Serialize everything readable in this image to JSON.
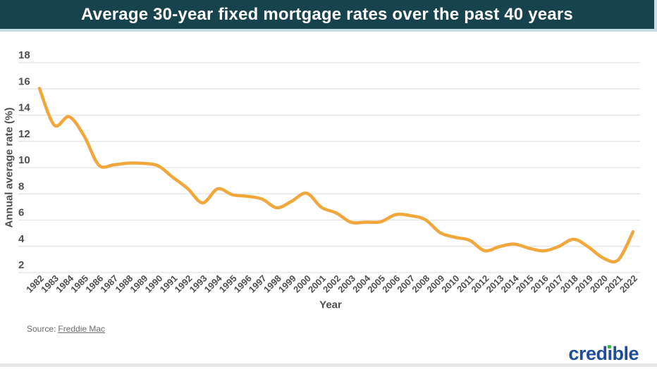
{
  "header": {
    "title": "Average 30-year fixed mortgage rates over the past 40 years"
  },
  "chart_data": {
    "type": "line",
    "title": "Average 30-year fixed mortgage rates over the past 40 years",
    "xlabel": "Year",
    "ylabel": "Annual average rate (%)",
    "ylim": [
      2,
      18
    ],
    "y_ticks": [
      18,
      16,
      14,
      12,
      10,
      8,
      6,
      4,
      2
    ],
    "grid": true,
    "legend_position": "none",
    "categories": [
      "1982",
      "1983",
      "1984",
      "1985",
      "1986",
      "1987",
      "1988",
      "1989",
      "1990",
      "1991",
      "1992",
      "1993",
      "1994",
      "1995",
      "1996",
      "1997",
      "1998",
      "1999",
      "2000",
      "2001",
      "2002",
      "2003",
      "2004",
      "2005",
      "2006",
      "2007",
      "2008",
      "2009",
      "2010",
      "2011",
      "2012",
      "2013",
      "2014",
      "2015",
      "2016",
      "2017",
      "2018",
      "2019",
      "2020",
      "2021",
      "2022"
    ],
    "values": [
      16.04,
      13.24,
      13.88,
      12.43,
      10.19,
      10.21,
      10.34,
      10.32,
      10.13,
      9.25,
      8.39,
      7.31,
      8.38,
      7.93,
      7.81,
      7.6,
      6.94,
      7.44,
      8.05,
      6.97,
      6.54,
      5.83,
      5.84,
      5.87,
      6.41,
      6.34,
      6.03,
      5.04,
      4.69,
      4.45,
      3.66,
      3.98,
      4.17,
      3.85,
      3.65,
      3.99,
      4.54,
      3.94,
      3.1,
      2.96,
      5.11
    ]
  },
  "source": {
    "prefix": "Source:",
    "link_text": "Freddie Mac"
  },
  "logo": {
    "pre": "cred",
    "i_stem": "ı",
    "post": "ble"
  },
  "theme": {
    "page_bg": "#FFFFFF",
    "header_bg": "#17434E",
    "header_border": "#C9DDE6",
    "title_color": "#FFFFFF",
    "line_color": "#F2A73D",
    "grid_color": "#E3E3E3",
    "tick_color": "#4F4F4F",
    "axis_title_color": "#4F4F4F",
    "source_color": "#6E6E6E",
    "brand_blue": "#1D4D9B",
    "brand_green": "#3CB54A",
    "bottom_strip": "#E7E7E7"
  }
}
